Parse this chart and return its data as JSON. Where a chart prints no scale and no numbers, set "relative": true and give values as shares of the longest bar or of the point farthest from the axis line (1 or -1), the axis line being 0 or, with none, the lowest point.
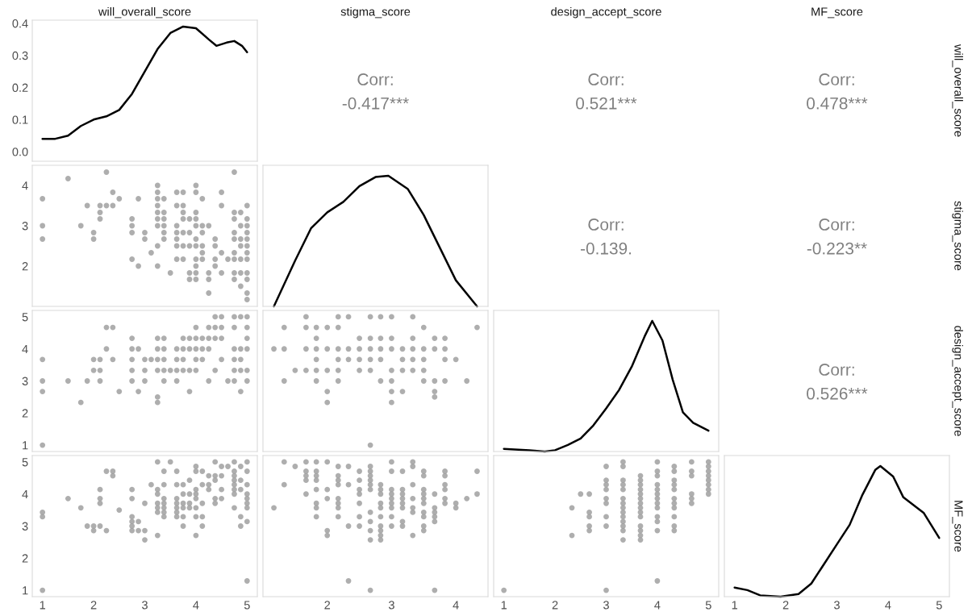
{
  "chart_data": [
    {
      "type": "line",
      "title": "will_overall_score",
      "x": [
        1,
        1.25,
        1.5,
        1.75,
        2,
        2.25,
        2.5,
        2.75,
        3,
        3.25,
        3.5,
        3.75,
        4,
        4.25,
        4.4,
        4.6,
        4.75,
        4.9,
        5
      ],
      "values": [
        0.04,
        0.04,
        0.05,
        0.08,
        0.1,
        0.11,
        0.13,
        0.18,
        0.25,
        0.32,
        0.37,
        0.39,
        0.385,
        0.35,
        0.33,
        0.34,
        0.345,
        0.33,
        0.31
      ],
      "color": "#000000",
      "xlim": [
        0.8,
        5.2
      ],
      "ylim": [
        -0.03,
        0.41
      ],
      "yticks": [
        {
          "value": 0,
          "label": "0.0"
        },
        0.1,
        0.2,
        0.3,
        0.4
      ],
      "tick_labels": "y"
    },
    {
      "type": "other",
      "title": "stigma_score",
      "annotations": [
        "Corr:",
        "-0.417***"
      ]
    },
    {
      "type": "other",
      "title": "design_accept_score",
      "annotations": [
        "Corr:",
        "0.521***"
      ]
    },
    {
      "type": "other",
      "title": "MF_score",
      "y2label": "will_overall_score",
      "annotations": [
        "Corr:",
        "0.478***"
      ]
    },
    {
      "type": "scatter",
      "marker": "circle",
      "color": "#a0a0a0",
      "xlim": [
        0.8,
        5.2
      ],
      "ylim": [
        1.0,
        4.5
      ],
      "yticks": [
        2,
        3,
        4
      ],
      "tick_labels": "y",
      "x": [
        2.25,
        4.75,
        1.5,
        3.25,
        4.0,
        2.375,
        3.25,
        3.625,
        3.75,
        4.0,
        4.5,
        1,
        2.5,
        2.875,
        3.25,
        3.375,
        4.125,
        1.875,
        2.125,
        2.25,
        2.375,
        3.25,
        3.625,
        3.75,
        4.5,
        5,
        2.125,
        3.25,
        3.375,
        3.75,
        4.0,
        4.75,
        4.875,
        2.125,
        2.75,
        3.25,
        3.375,
        3.75,
        3.875,
        4.0,
        4.75,
        5,
        1,
        1.75,
        2.75,
        3.25,
        3.375,
        3.625,
        4.0,
        4.125,
        4.25,
        4.875,
        5,
        2.0,
        2.75,
        3.0,
        3.375,
        3.625,
        3.75,
        3.875,
        4.125,
        4.75,
        5,
        1,
        2.0,
        3.0,
        3.375,
        3.625,
        4.0,
        4.375,
        4.75,
        4.875,
        5,
        3.25,
        3.625,
        3.75,
        3.875,
        4.0,
        4.125,
        4.375,
        4.875,
        5,
        3.125,
        4.125,
        4.5,
        4.75,
        5,
        2.75,
        3.625,
        3.75,
        4.0,
        4.125,
        4.375,
        4.625,
        4.75,
        4.875,
        5,
        2.875,
        3.25,
        4.0,
        4.375,
        3.5,
        3.875,
        4.0,
        4.25,
        4.5,
        4.75,
        4.875,
        5,
        3.875,
        4.0,
        4.25,
        4.75,
        5,
        4.875,
        4.25,
        5,
        5
      ],
      "values": [
        4.33,
        4.33,
        4.17,
        4.0,
        4.0,
        3.83,
        3.83,
        3.83,
        3.83,
        3.83,
        3.83,
        3.67,
        3.67,
        3.67,
        3.67,
        3.67,
        3.67,
        3.5,
        3.5,
        3.5,
        3.5,
        3.5,
        3.5,
        3.5,
        3.5,
        3.5,
        3.33,
        3.33,
        3.33,
        3.33,
        3.33,
        3.33,
        3.33,
        3.17,
        3.17,
        3.17,
        3.17,
        3.17,
        3.17,
        3.17,
        3.17,
        3.17,
        3.0,
        3.0,
        3.0,
        3.0,
        3.0,
        3.0,
        3.0,
        3.0,
        3.0,
        3.0,
        3.0,
        2.83,
        2.83,
        2.83,
        2.83,
        2.83,
        2.83,
        2.83,
        2.83,
        2.83,
        2.83,
        2.67,
        2.67,
        2.67,
        2.67,
        2.67,
        2.67,
        2.67,
        2.67,
        2.67,
        2.67,
        2.5,
        2.5,
        2.5,
        2.5,
        2.5,
        2.5,
        2.5,
        2.5,
        2.5,
        2.33,
        2.33,
        2.33,
        2.33,
        2.33,
        2.17,
        2.17,
        2.17,
        2.17,
        2.17,
        2.17,
        2.17,
        2.17,
        2.17,
        2.17,
        2.0,
        2.0,
        2.0,
        2.0,
        1.83,
        1.83,
        1.83,
        1.83,
        1.83,
        1.83,
        1.83,
        1.83,
        1.67,
        1.67,
        1.67,
        1.67,
        1.67,
        1.5,
        1.33,
        1.33,
        1.17
      ]
    },
    {
      "type": "line",
      "relative": true,
      "x": [
        1.17,
        1.5,
        1.75,
        2.0,
        2.25,
        2.5,
        2.75,
        2.95,
        3.25,
        3.5,
        3.75,
        4.0,
        4.33
      ],
      "values": [
        0,
        0.35,
        0.6,
        0.72,
        0.8,
        0.92,
        0.99,
        1.0,
        0.9,
        0.7,
        0.45,
        0.2,
        0.0
      ],
      "color": "#000000",
      "xlim": [
        1.0,
        4.5
      ],
      "tick_labels": false
    },
    {
      "type": "other",
      "annotations": [
        "Corr:",
        "-0.139."
      ]
    },
    {
      "type": "other",
      "y2label": "stigma_score",
      "annotations": [
        "Corr:",
        "-0.223**"
      ]
    },
    {
      "type": "scatter",
      "marker": "circle",
      "color": "#a0a0a0",
      "xlim": [
        0.8,
        5.2
      ],
      "ylim": [
        0.8,
        5.2
      ],
      "yticks": [
        1,
        2,
        3,
        4,
        5
      ],
      "tick_labels": "y",
      "x": [
        4.375,
        4.5,
        4.75,
        4.875,
        5,
        2.25,
        2.375,
        4.0,
        4.25,
        4.375,
        4.5,
        4.75,
        5,
        2.75,
        3.25,
        3.375,
        3.75,
        3.875,
        4.0,
        4.125,
        4.25,
        4.375,
        4.5,
        5,
        2.25,
        2.75,
        2.875,
        3.25,
        3.375,
        3.625,
        3.75,
        3.875,
        4.0,
        4.125,
        4.25,
        4.75,
        4.875,
        5,
        1,
        2.0,
        2.125,
        2.375,
        2.75,
        3.0,
        3.125,
        3.25,
        3.375,
        3.625,
        3.75,
        4.0,
        4.125,
        4.5,
        4.75,
        4.875,
        2.0,
        2.125,
        2.75,
        3.0,
        3.25,
        3.375,
        3.5,
        3.625,
        3.75,
        3.875,
        4.0,
        4.375,
        4.75,
        4.875,
        5,
        1,
        1.5,
        1.875,
        2.125,
        2.75,
        3.0,
        3.375,
        3.625,
        4.25,
        4.625,
        4.75,
        5,
        1,
        2.5,
        2.875,
        3.875,
        4.875,
        3.25,
        1.75,
        3.25,
        1
      ],
      "values": [
        5,
        5,
        5,
        5,
        5,
        4.67,
        4.67,
        4.67,
        4.67,
        4.67,
        4.67,
        4.67,
        4.67,
        4.33,
        4.33,
        4.33,
        4.33,
        4.33,
        4.33,
        4.33,
        4.33,
        4.33,
        4.33,
        4.33,
        4,
        4,
        4,
        4,
        4,
        4,
        4,
        4,
        4,
        4,
        4,
        4,
        4,
        4,
        3.67,
        3.67,
        3.67,
        3.67,
        3.67,
        3.67,
        3.67,
        3.67,
        3.67,
        3.67,
        3.67,
        3.67,
        3.67,
        3.67,
        3.67,
        3.67,
        3.33,
        3.33,
        3.33,
        3.33,
        3.33,
        3.33,
        3.33,
        3.33,
        3.33,
        3.33,
        3.33,
        3.33,
        3.33,
        3.33,
        3.33,
        3,
        3,
        3,
        3,
        3,
        3,
        3,
        3,
        3,
        3,
        3,
        3,
        2.67,
        2.67,
        2.67,
        2.67,
        2.67,
        2.5,
        2.33,
        2.33,
        1
      ]
    },
    {
      "type": "scatter",
      "marker": "circle",
      "color": "#a0a0a0",
      "xlim": [
        1.0,
        4.5
      ],
      "ylim": [
        0.8,
        5.2
      ],
      "tick_labels": false,
      "x": [
        1.67,
        2.17,
        2.33,
        2.67,
        2.83,
        3.0,
        3.33,
        1.33,
        1.67,
        1.83,
        2.0,
        2.17,
        3.5,
        4.33,
        1.83,
        2.5,
        2.67,
        2.83,
        3.0,
        3.33,
        3.67,
        3.83,
        1.17,
        1.33,
        1.67,
        1.83,
        2.0,
        2.17,
        2.33,
        2.5,
        2.67,
        2.83,
        3.0,
        3.17,
        3.33,
        3.5,
        3.67,
        3.83,
        1.83,
        2.17,
        2.33,
        2.5,
        2.67,
        2.83,
        3.17,
        3.33,
        3.5,
        3.83,
        4.0,
        1.5,
        1.67,
        1.83,
        2.0,
        2.17,
        2.5,
        2.67,
        3.0,
        3.17,
        3.33,
        3.5,
        1.33,
        1.83,
        2.17,
        2.83,
        3.0,
        3.5,
        3.67,
        3.83,
        4.17,
        2.0,
        3.0,
        3.17,
        3.67,
        3.67,
        2.0,
        3.0,
        2.67
      ],
      "values": [
        5,
        5,
        5,
        5,
        5,
        5,
        5,
        4.67,
        4.67,
        4.67,
        4.67,
        4.67,
        4.67,
        4.67,
        4.33,
        4.33,
        4.33,
        4.33,
        4.33,
        4.33,
        4.33,
        4.33,
        4,
        4,
        4,
        4,
        4,
        4,
        4,
        4,
        4,
        4,
        4,
        4,
        4,
        4,
        4,
        4,
        3.67,
        3.67,
        3.67,
        3.67,
        3.67,
        3.67,
        3.67,
        3.67,
        3.67,
        3.67,
        3.67,
        3.33,
        3.33,
        3.33,
        3.33,
        3.33,
        3.33,
        3.33,
        3.33,
        3.33,
        3.33,
        3.33,
        3,
        3,
        3,
        3,
        3,
        3,
        3,
        3,
        3,
        2.67,
        2.67,
        2.67,
        2.67,
        2.5,
        2.33,
        2.33,
        1
      ]
    },
    {
      "type": "line",
      "relative": true,
      "x": [
        1,
        1.5,
        1.8,
        2,
        2.25,
        2.5,
        2.75,
        3,
        3.25,
        3.5,
        3.75,
        3.9,
        4.1,
        4.3,
        4.5,
        4.7,
        5
      ],
      "values": [
        0.02,
        0.01,
        0,
        0.01,
        0.05,
        0.1,
        0.2,
        0.33,
        0.47,
        0.65,
        0.88,
        1.0,
        0.85,
        0.55,
        0.3,
        0.22,
        0.16
      ],
      "color": "#000000",
      "xlim": [
        0.8,
        5.2
      ],
      "tick_labels": false
    },
    {
      "type": "other",
      "y2label": "design_accept_score",
      "annotations": [
        "Corr:",
        "0.526***"
      ]
    },
    {
      "type": "scatter",
      "marker": "circle",
      "color": "#a0a0a0",
      "xlim": [
        0.8,
        5.2
      ],
      "ylim": [
        0.8,
        5.2
      ],
      "xticks": [
        1,
        2,
        3,
        4,
        5
      ],
      "yticks": [
        1,
        2,
        3,
        4,
        5
      ],
      "x": [
        3.25,
        3.5,
        4.375,
        4.75,
        5,
        4.0,
        4.5,
        4.625,
        4.875,
        2.25,
        2.375,
        3.375,
        3.625,
        4.0,
        4.125,
        4.75,
        5,
        2.375,
        4.25,
        4.375,
        4.5,
        4.75,
        3.875,
        4.375,
        4.75,
        4.875,
        3.125,
        3.375,
        3.625,
        3.75,
        4.125,
        4.25,
        4.75,
        5,
        2.125,
        2.75,
        3.25,
        4.0,
        4.25,
        4.5,
        4.75,
        4.875,
        3.25,
        3.75,
        3.875,
        4.0,
        4.75,
        5,
        1.5,
        2.125,
        2.75,
        3.375,
        3.625,
        4.0,
        4.375,
        4.5,
        5,
        2.125,
        3.0,
        3.25,
        3.375,
        3.625,
        3.75,
        3.875,
        4.125,
        4.375,
        5,
        1.75,
        3.25,
        3.375,
        3.625,
        3.75,
        3.875,
        4.0,
        4.75,
        5,
        2.5,
        1,
        3.25,
        3.375,
        3.625,
        1,
        2.75,
        3.375,
        3.625,
        3.75,
        4.0,
        4.125,
        4.875,
        2.75,
        2.875,
        5,
        1.875,
        2.0,
        2.125,
        2.75,
        3.75,
        4.125,
        4.875,
        2.0,
        2.25,
        2.75,
        2.875,
        3.0,
        3.25,
        4.0,
        3.0,
        5,
        1
      ],
      "values": [
        5,
        5,
        5,
        5,
        5,
        4.86,
        4.86,
        4.86,
        4.86,
        4.71,
        4.71,
        4.71,
        4.71,
        4.71,
        4.71,
        4.71,
        4.71,
        4.57,
        4.57,
        4.57,
        4.57,
        4.57,
        4.43,
        4.43,
        4.43,
        4.43,
        4.29,
        4.29,
        4.29,
        4.29,
        4.29,
        4.29,
        4.29,
        4.29,
        4.14,
        4.14,
        4.14,
        4.14,
        4.14,
        4.14,
        4.14,
        4.14,
        4,
        4,
        4,
        4,
        4,
        4,
        3.86,
        3.86,
        3.86,
        3.86,
        3.86,
        3.86,
        3.86,
        3.86,
        3.86,
        3.71,
        3.71,
        3.71,
        3.71,
        3.71,
        3.71,
        3.71,
        3.71,
        3.71,
        3.71,
        3.57,
        3.57,
        3.57,
        3.57,
        3.57,
        3.57,
        3.57,
        3.57,
        3.57,
        3.5,
        3.43,
        3.43,
        3.43,
        3.43,
        3.29,
        3.29,
        3.29,
        3.29,
        3.29,
        3.29,
        3.29,
        3.29,
        3.14,
        3.14,
        3.14,
        3,
        3,
        3,
        3,
        3,
        3,
        3,
        2.86,
        2.86,
        2.86,
        2.86,
        2.86,
        2.71,
        2.71,
        2.57,
        1.29,
        1
      ]
    },
    {
      "type": "scatter",
      "marker": "circle",
      "color": "#a0a0a0",
      "xlim": [
        1.0,
        4.5
      ],
      "ylim": [
        0.8,
        5.2
      ],
      "xticks": [
        2,
        3,
        4
      ],
      "tick_labels": "x",
      "x": [
        1.33,
        1.67,
        1.83,
        2.0,
        3.0,
        3.33,
        1.5,
        2.17,
        2.33,
        2.67,
        3.33,
        1.67,
        1.83,
        2.5,
        2.67,
        3.0,
        3.17,
        3.5,
        3.83,
        4.33,
        1.67,
        1.83,
        2.17,
        2.67,
        3.5,
        3.83,
        1.67,
        1.83,
        2.17,
        2.5,
        2.67,
        1.33,
        2.17,
        2.33,
        2.67,
        2.83,
        3.33,
        3.83,
        1.83,
        2.0,
        2.5,
        2.67,
        2.83,
        3.0,
        3.17,
        3.5,
        3.83,
        1.67,
        2.5,
        2.83,
        3.0,
        3.17,
        3.5,
        3.67,
        4.33,
        2.0,
        2.17,
        3.0,
        3.17,
        3.33,
        3.5,
        3.83,
        4.17,
        1.83,
        2.17,
        2.5,
        2.83,
        3.0,
        3.17,
        3.5,
        3.83,
        4.0,
        1.17,
        1.83,
        2.17,
        2.83,
        3.0,
        3.17,
        3.33,
        3.67,
        4.0,
        2.67,
        3.33,
        3.5,
        3.67,
        1.83,
        2.17,
        2.5,
        2.83,
        3.0,
        3.5,
        3.67,
        2.67,
        3.17,
        3.67,
        2.33,
        2.5,
        2.83,
        3.0,
        3.17,
        3.5,
        2.0,
        2.67,
        2.83,
        3.5,
        2.0,
        2.83,
        3.33,
        2.67,
        2.83,
        2.33,
        2.67,
        3.67
      ],
      "values": [
        5,
        5,
        5,
        5,
        5,
        5,
        4.86,
        4.86,
        4.86,
        4.86,
        4.86,
        4.71,
        4.71,
        4.71,
        4.71,
        4.71,
        4.71,
        4.71,
        4.71,
        4.71,
        4.57,
        4.57,
        4.57,
        4.57,
        4.57,
        4.57,
        4.43,
        4.43,
        4.43,
        4.43,
        4.43,
        4.29,
        4.29,
        4.29,
        4.29,
        4.29,
        4.29,
        4.29,
        4.14,
        4.14,
        4.14,
        4.14,
        4.14,
        4.14,
        4.14,
        4.14,
        4.14,
        4,
        4,
        4,
        4,
        4,
        4,
        4,
        4,
        3.86,
        3.86,
        3.86,
        3.86,
        3.86,
        3.86,
        3.86,
        3.86,
        3.71,
        3.71,
        3.71,
        3.71,
        3.71,
        3.71,
        3.71,
        3.71,
        3.71,
        3.57,
        3.57,
        3.57,
        3.57,
        3.57,
        3.57,
        3.57,
        3.57,
        3.57,
        3.43,
        3.43,
        3.43,
        3.43,
        3.29,
        3.29,
        3.29,
        3.29,
        3.29,
        3.29,
        3.29,
        3.14,
        3.14,
        3.14,
        3,
        3,
        3,
        3,
        3,
        3,
        2.86,
        2.86,
        2.86,
        2.86,
        2.71,
        2.71,
        2.71,
        2.57,
        2.57,
        1.29,
        1,
        1
      ]
    },
    {
      "type": "scatter",
      "marker": "circle",
      "color": "#a0a0a0",
      "xlim": [
        0.8,
        5.2
      ],
      "ylim": [
        0.8,
        5.2
      ],
      "xticks": [
        1,
        2,
        3,
        4,
        5
      ],
      "tick_labels": "x",
      "x": [
        1,
        2.33,
        2.33,
        2.5,
        2.67,
        2.67,
        2.67,
        2.67,
        2.67,
        3,
        3,
        3,
        3,
        3,
        3,
        3,
        3,
        3,
        3.33,
        3.33,
        3.33,
        3.33,
        3.33,
        3.33,
        3.33,
        3.33,
        3.33,
        3.33,
        3.33,
        3.33,
        3.33,
        3.33,
        3.67,
        3.67,
        3.67,
        3.67,
        3.67,
        3.67,
        3.67,
        3.67,
        3.67,
        3.67,
        3.67,
        3.67,
        3.67,
        3.67,
        4,
        4,
        4,
        4,
        4,
        4,
        4,
        4,
        4,
        4,
        4,
        4,
        4,
        4.33,
        4.33,
        4.33,
        4.33,
        4.33,
        4.33,
        4.33,
        4.33,
        4.33,
        4.33,
        4.33,
        4.67,
        4.67,
        4.67,
        4.67,
        4.67,
        4.67,
        5,
        5,
        5,
        5,
        5,
        5,
        5,
        5
      ],
      "values": [
        1,
        3.57,
        2.71,
        4,
        4,
        3.43,
        3.29,
        3,
        2.86,
        4.86,
        4.43,
        4.29,
        4.14,
        3.86,
        3.71,
        3.29,
        3,
        1,
        5,
        4.86,
        4.43,
        4.29,
        4.14,
        3.86,
        3.71,
        3.57,
        3.43,
        3.29,
        3.14,
        3,
        2.86,
        2.57,
        4.57,
        4.43,
        4.29,
        4.14,
        4,
        3.86,
        3.71,
        3.57,
        3.43,
        3.29,
        3,
        2.86,
        2.71,
        2.57,
        5,
        4.71,
        4.57,
        4.29,
        4.14,
        4,
        3.86,
        3.71,
        3.57,
        3.29,
        3.14,
        2.86,
        1.29,
        4.86,
        4.71,
        4.43,
        4.29,
        4.14,
        3.86,
        3.71,
        3.57,
        3.29,
        3,
        2.86,
        5,
        4.71,
        4.57,
        4,
        3.86,
        3.71,
        5,
        4.86,
        4.71,
        4.57,
        4.43,
        4.29,
        4.14,
        4
      ]
    },
    {
      "type": "line",
      "relative": true,
      "x": [
        1,
        1.25,
        1.5,
        1.9,
        2.25,
        2.5,
        2.75,
        3,
        3.25,
        3.5,
        3.75,
        3.85,
        4.1,
        4.3,
        4.5,
        4.7,
        5
      ],
      "values": [
        0.07,
        0.05,
        0.01,
        0,
        0.02,
        0.1,
        0.25,
        0.4,
        0.55,
        0.78,
        0.97,
        1.0,
        0.92,
        0.76,
        0.7,
        0.64,
        0.45
      ],
      "color": "#000000",
      "y2label": "MF_score",
      "xlim": [
        0.8,
        5.2
      ],
      "xticks": [
        1,
        2,
        3,
        4,
        5
      ],
      "tick_labels": "x"
    }
  ]
}
